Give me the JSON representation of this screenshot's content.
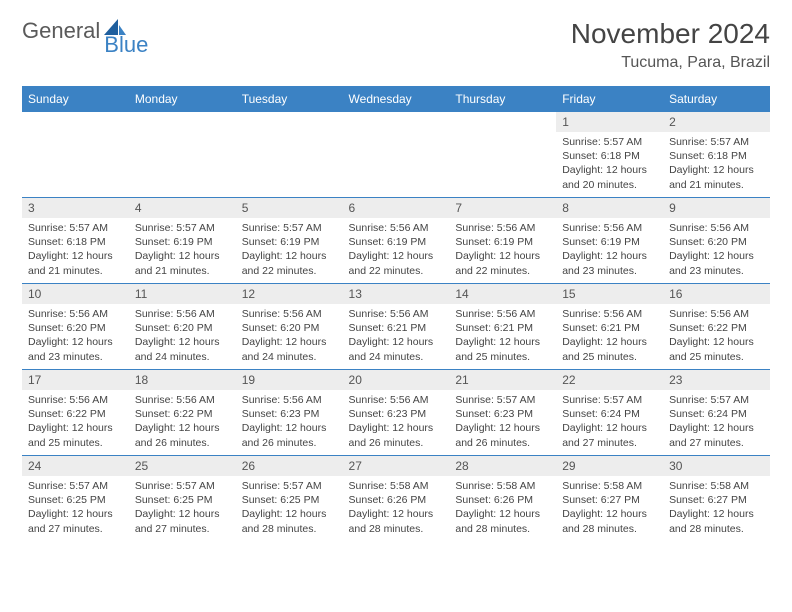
{
  "logo": {
    "text1": "General",
    "text2": "Blue"
  },
  "title": "November 2024",
  "location": "Tucuma, Para, Brazil",
  "colors": {
    "header_bg": "#3b82c4",
    "header_text": "#ffffff",
    "daynum_bg": "#ededed",
    "text": "#444444",
    "border": "#3b82c4"
  },
  "weekdays": [
    "Sunday",
    "Monday",
    "Tuesday",
    "Wednesday",
    "Thursday",
    "Friday",
    "Saturday"
  ],
  "weeks": [
    [
      {
        "empty": true
      },
      {
        "empty": true
      },
      {
        "empty": true
      },
      {
        "empty": true
      },
      {
        "empty": true
      },
      {
        "num": "1",
        "sunrise": "5:57 AM",
        "sunset": "6:18 PM",
        "daylight": "12 hours and 20 minutes."
      },
      {
        "num": "2",
        "sunrise": "5:57 AM",
        "sunset": "6:18 PM",
        "daylight": "12 hours and 21 minutes."
      }
    ],
    [
      {
        "num": "3",
        "sunrise": "5:57 AM",
        "sunset": "6:18 PM",
        "daylight": "12 hours and 21 minutes."
      },
      {
        "num": "4",
        "sunrise": "5:57 AM",
        "sunset": "6:19 PM",
        "daylight": "12 hours and 21 minutes."
      },
      {
        "num": "5",
        "sunrise": "5:57 AM",
        "sunset": "6:19 PM",
        "daylight": "12 hours and 22 minutes."
      },
      {
        "num": "6",
        "sunrise": "5:56 AM",
        "sunset": "6:19 PM",
        "daylight": "12 hours and 22 minutes."
      },
      {
        "num": "7",
        "sunrise": "5:56 AM",
        "sunset": "6:19 PM",
        "daylight": "12 hours and 22 minutes."
      },
      {
        "num": "8",
        "sunrise": "5:56 AM",
        "sunset": "6:19 PM",
        "daylight": "12 hours and 23 minutes."
      },
      {
        "num": "9",
        "sunrise": "5:56 AM",
        "sunset": "6:20 PM",
        "daylight": "12 hours and 23 minutes."
      }
    ],
    [
      {
        "num": "10",
        "sunrise": "5:56 AM",
        "sunset": "6:20 PM",
        "daylight": "12 hours and 23 minutes."
      },
      {
        "num": "11",
        "sunrise": "5:56 AM",
        "sunset": "6:20 PM",
        "daylight": "12 hours and 24 minutes."
      },
      {
        "num": "12",
        "sunrise": "5:56 AM",
        "sunset": "6:20 PM",
        "daylight": "12 hours and 24 minutes."
      },
      {
        "num": "13",
        "sunrise": "5:56 AM",
        "sunset": "6:21 PM",
        "daylight": "12 hours and 24 minutes."
      },
      {
        "num": "14",
        "sunrise": "5:56 AM",
        "sunset": "6:21 PM",
        "daylight": "12 hours and 25 minutes."
      },
      {
        "num": "15",
        "sunrise": "5:56 AM",
        "sunset": "6:21 PM",
        "daylight": "12 hours and 25 minutes."
      },
      {
        "num": "16",
        "sunrise": "5:56 AM",
        "sunset": "6:22 PM",
        "daylight": "12 hours and 25 minutes."
      }
    ],
    [
      {
        "num": "17",
        "sunrise": "5:56 AM",
        "sunset": "6:22 PM",
        "daylight": "12 hours and 25 minutes."
      },
      {
        "num": "18",
        "sunrise": "5:56 AM",
        "sunset": "6:22 PM",
        "daylight": "12 hours and 26 minutes."
      },
      {
        "num": "19",
        "sunrise": "5:56 AM",
        "sunset": "6:23 PM",
        "daylight": "12 hours and 26 minutes."
      },
      {
        "num": "20",
        "sunrise": "5:56 AM",
        "sunset": "6:23 PM",
        "daylight": "12 hours and 26 minutes."
      },
      {
        "num": "21",
        "sunrise": "5:57 AM",
        "sunset": "6:23 PM",
        "daylight": "12 hours and 26 minutes."
      },
      {
        "num": "22",
        "sunrise": "5:57 AM",
        "sunset": "6:24 PM",
        "daylight": "12 hours and 27 minutes."
      },
      {
        "num": "23",
        "sunrise": "5:57 AM",
        "sunset": "6:24 PM",
        "daylight": "12 hours and 27 minutes."
      }
    ],
    [
      {
        "num": "24",
        "sunrise": "5:57 AM",
        "sunset": "6:25 PM",
        "daylight": "12 hours and 27 minutes."
      },
      {
        "num": "25",
        "sunrise": "5:57 AM",
        "sunset": "6:25 PM",
        "daylight": "12 hours and 27 minutes."
      },
      {
        "num": "26",
        "sunrise": "5:57 AM",
        "sunset": "6:25 PM",
        "daylight": "12 hours and 28 minutes."
      },
      {
        "num": "27",
        "sunrise": "5:58 AM",
        "sunset": "6:26 PM",
        "daylight": "12 hours and 28 minutes."
      },
      {
        "num": "28",
        "sunrise": "5:58 AM",
        "sunset": "6:26 PM",
        "daylight": "12 hours and 28 minutes."
      },
      {
        "num": "29",
        "sunrise": "5:58 AM",
        "sunset": "6:27 PM",
        "daylight": "12 hours and 28 minutes."
      },
      {
        "num": "30",
        "sunrise": "5:58 AM",
        "sunset": "6:27 PM",
        "daylight": "12 hours and 28 minutes."
      }
    ]
  ]
}
